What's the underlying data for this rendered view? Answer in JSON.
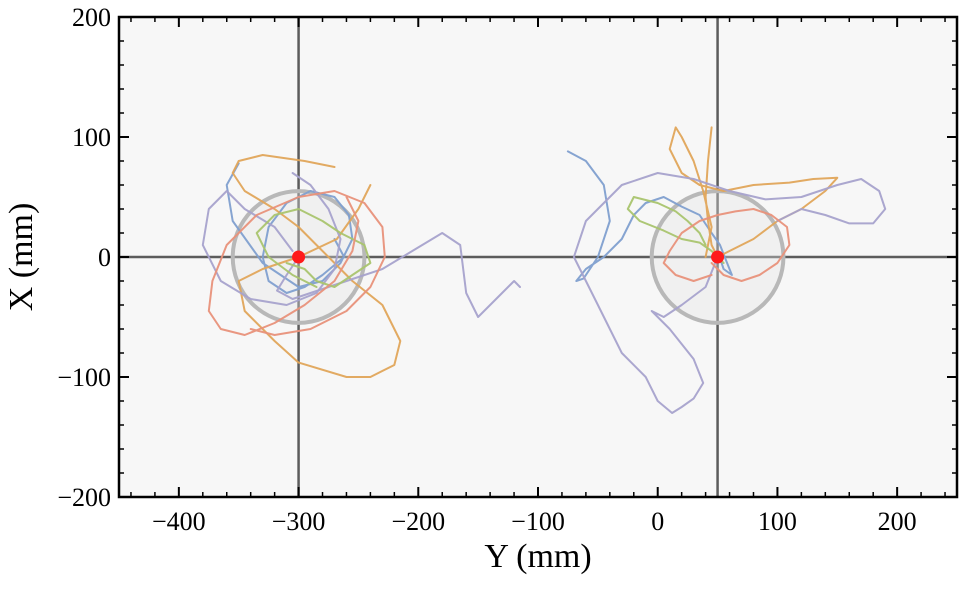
{
  "chart_data": {
    "type": "line",
    "title": "",
    "xlabel": "Y (mm)",
    "ylabel": "X (mm)",
    "xlim": [
      -450,
      250
    ],
    "ylim": [
      -200,
      200
    ],
    "x_ticks": [
      -400,
      -300,
      -200,
      -100,
      0,
      100,
      200
    ],
    "x_tick_labels": [
      "−400",
      "−300",
      "−200",
      "−100",
      "0",
      "100",
      "200"
    ],
    "y_ticks": [
      -200,
      -100,
      0,
      100,
      200
    ],
    "y_tick_labels": [
      "−200",
      "−100",
      "0",
      "100",
      "200"
    ],
    "reference_lines": {
      "vertical": [
        -300,
        50
      ],
      "horizontal": [
        0
      ]
    },
    "targets": [
      {
        "name": "target-left",
        "x": -300,
        "y": 0,
        "radius": 55
      },
      {
        "name": "target-right",
        "x": 50,
        "y": 0,
        "radius": 55
      }
    ],
    "series": [
      {
        "name": "trajectory-blue",
        "color": "#7f9fcf",
        "x": [
          -270,
          -262,
          -280,
          -295,
          -310,
          -325,
          -330,
          -325,
          -310,
          -290,
          -270,
          -258,
          -255,
          -265,
          -280,
          -300,
          -330,
          -355,
          -360,
          -350
        ],
        "y": [
          15,
          0,
          -15,
          -25,
          -30,
          -20,
          0,
          25,
          45,
          55,
          50,
          35,
          15,
          -5,
          -20,
          -25,
          -5,
          30,
          60,
          78
        ]
      },
      {
        "name": "trajectory-blue",
        "color": "#7f9fcf",
        "x": [
          -75,
          -60,
          -45,
          -40,
          -50,
          -62,
          -68,
          -60,
          -45,
          -30,
          -20,
          -10,
          5,
          20,
          35,
          45,
          52,
          58,
          62,
          55,
          50
        ],
        "y": [
          88,
          80,
          60,
          30,
          0,
          -18,
          -20,
          -10,
          0,
          15,
          35,
          45,
          50,
          42,
          35,
          20,
          10,
          -5,
          -15,
          -10,
          5
        ]
      },
      {
        "name": "trajectory-orange",
        "color": "#e0a55a",
        "x": [
          -240,
          -250,
          -268,
          -300,
          -330,
          -350,
          -345,
          -320,
          -300,
          -260,
          -240,
          -220,
          -215,
          -230,
          -255,
          -270,
          -285,
          -300,
          -320,
          -345,
          -355,
          -350,
          -330,
          -295,
          -270
        ],
        "y": [
          60,
          40,
          15,
          0,
          -10,
          -20,
          -45,
          -70,
          -88,
          -100,
          -100,
          -90,
          -70,
          -40,
          -20,
          -5,
          10,
          25,
          40,
          55,
          70,
          80,
          85,
          80,
          75
        ]
      },
      {
        "name": "trajectory-orange",
        "color": "#e0a55a",
        "x": [
          40,
          45,
          38,
          30,
          20,
          15,
          10,
          20,
          35,
          55,
          80,
          110,
          130,
          150,
          140,
          120,
          100,
          80,
          60,
          50,
          45,
          42,
          40,
          42,
          45
        ],
        "y": [
          0,
          25,
          55,
          80,
          100,
          108,
          90,
          70,
          60,
          55,
          60,
          62,
          65,
          66,
          55,
          40,
          30,
          15,
          5,
          0,
          10,
          30,
          50,
          80,
          108
        ]
      },
      {
        "name": "trajectory-purple",
        "color": "#a6a2cc",
        "x": [
          -300,
          -310,
          -318,
          -305,
          -290,
          -260,
          -230,
          -205,
          -180,
          -165,
          -160,
          -150,
          -135,
          -120,
          -115
        ],
        "y": [
          0,
          -15,
          -28,
          -35,
          -30,
          -20,
          -10,
          5,
          20,
          10,
          -30,
          -50,
          -35,
          -20,
          -25
        ]
      },
      {
        "name": "trajectory-purple",
        "color": "#a6a2cc",
        "x": [
          -305,
          -320,
          -345,
          -360,
          -375,
          -380,
          -365,
          -340,
          -310,
          -285,
          -270,
          -265,
          -275,
          -290,
          -305
        ],
        "y": [
          5,
          25,
          40,
          55,
          40,
          10,
          -20,
          -35,
          -40,
          -30,
          -10,
          15,
          40,
          60,
          70
        ]
      },
      {
        "name": "trajectory-purple",
        "color": "#a6a2cc",
        "x": [
          50,
          40,
          20,
          5,
          -5,
          10,
          30,
          38,
          30,
          20,
          12,
          0,
          -10,
          -30,
          -50,
          -70,
          -60,
          -30,
          0,
          30,
          60,
          90,
          120,
          150,
          170,
          185,
          190,
          180,
          160,
          140,
          120,
          100
        ],
        "y": [
          0,
          -25,
          -40,
          -50,
          -45,
          -60,
          -85,
          -105,
          -118,
          -125,
          -130,
          -120,
          -100,
          -80,
          -40,
          0,
          30,
          60,
          70,
          65,
          55,
          48,
          50,
          60,
          65,
          55,
          40,
          28,
          28,
          35,
          40,
          30
        ]
      },
      {
        "name": "trajectory-green",
        "color": "#a9c46e",
        "x": [
          -310,
          -295,
          -285,
          -270,
          -255,
          -240,
          -245,
          -265,
          -280,
          -300,
          -320,
          -335,
          -325,
          -305,
          -285
        ],
        "y": [
          -5,
          -10,
          -20,
          -25,
          -15,
          -5,
          10,
          20,
          30,
          40,
          35,
          20,
          0,
          -15,
          -25
        ]
      },
      {
        "name": "trajectory-green",
        "color": "#a9c46e",
        "x": [
          40,
          35,
          25,
          15,
          0,
          -20,
          -25,
          -15,
          5,
          20,
          35,
          45,
          50,
          55
        ],
        "y": [
          10,
          20,
          30,
          38,
          45,
          50,
          40,
          30,
          22,
          15,
          12,
          5,
          0,
          -5
        ]
      },
      {
        "name": "trajectory-red",
        "color": "#e8917a",
        "x": [
          -260,
          -250,
          -255,
          -270,
          -295,
          -320,
          -345,
          -365,
          -375,
          -372,
          -360,
          -335,
          -300,
          -270,
          -245,
          -230,
          -228,
          -240,
          -260,
          -290,
          -320,
          -340
        ],
        "y": [
          50,
          30,
          5,
          -20,
          -40,
          -55,
          -65,
          -60,
          -45,
          -20,
          10,
          35,
          50,
          55,
          45,
          25,
          0,
          -25,
          -45,
          -60,
          -65,
          -60
        ]
      },
      {
        "name": "trajectory-red",
        "color": "#e8917a",
        "x": [
          45,
          55,
          70,
          85,
          100,
          110,
          108,
          95,
          80,
          65,
          50,
          35,
          20,
          10,
          5,
          15,
          30,
          45
        ],
        "y": [
          -5,
          -15,
          -20,
          -15,
          -5,
          10,
          25,
          35,
          40,
          38,
          35,
          30,
          20,
          5,
          -5,
          -15,
          -20,
          -15
        ]
      }
    ]
  }
}
